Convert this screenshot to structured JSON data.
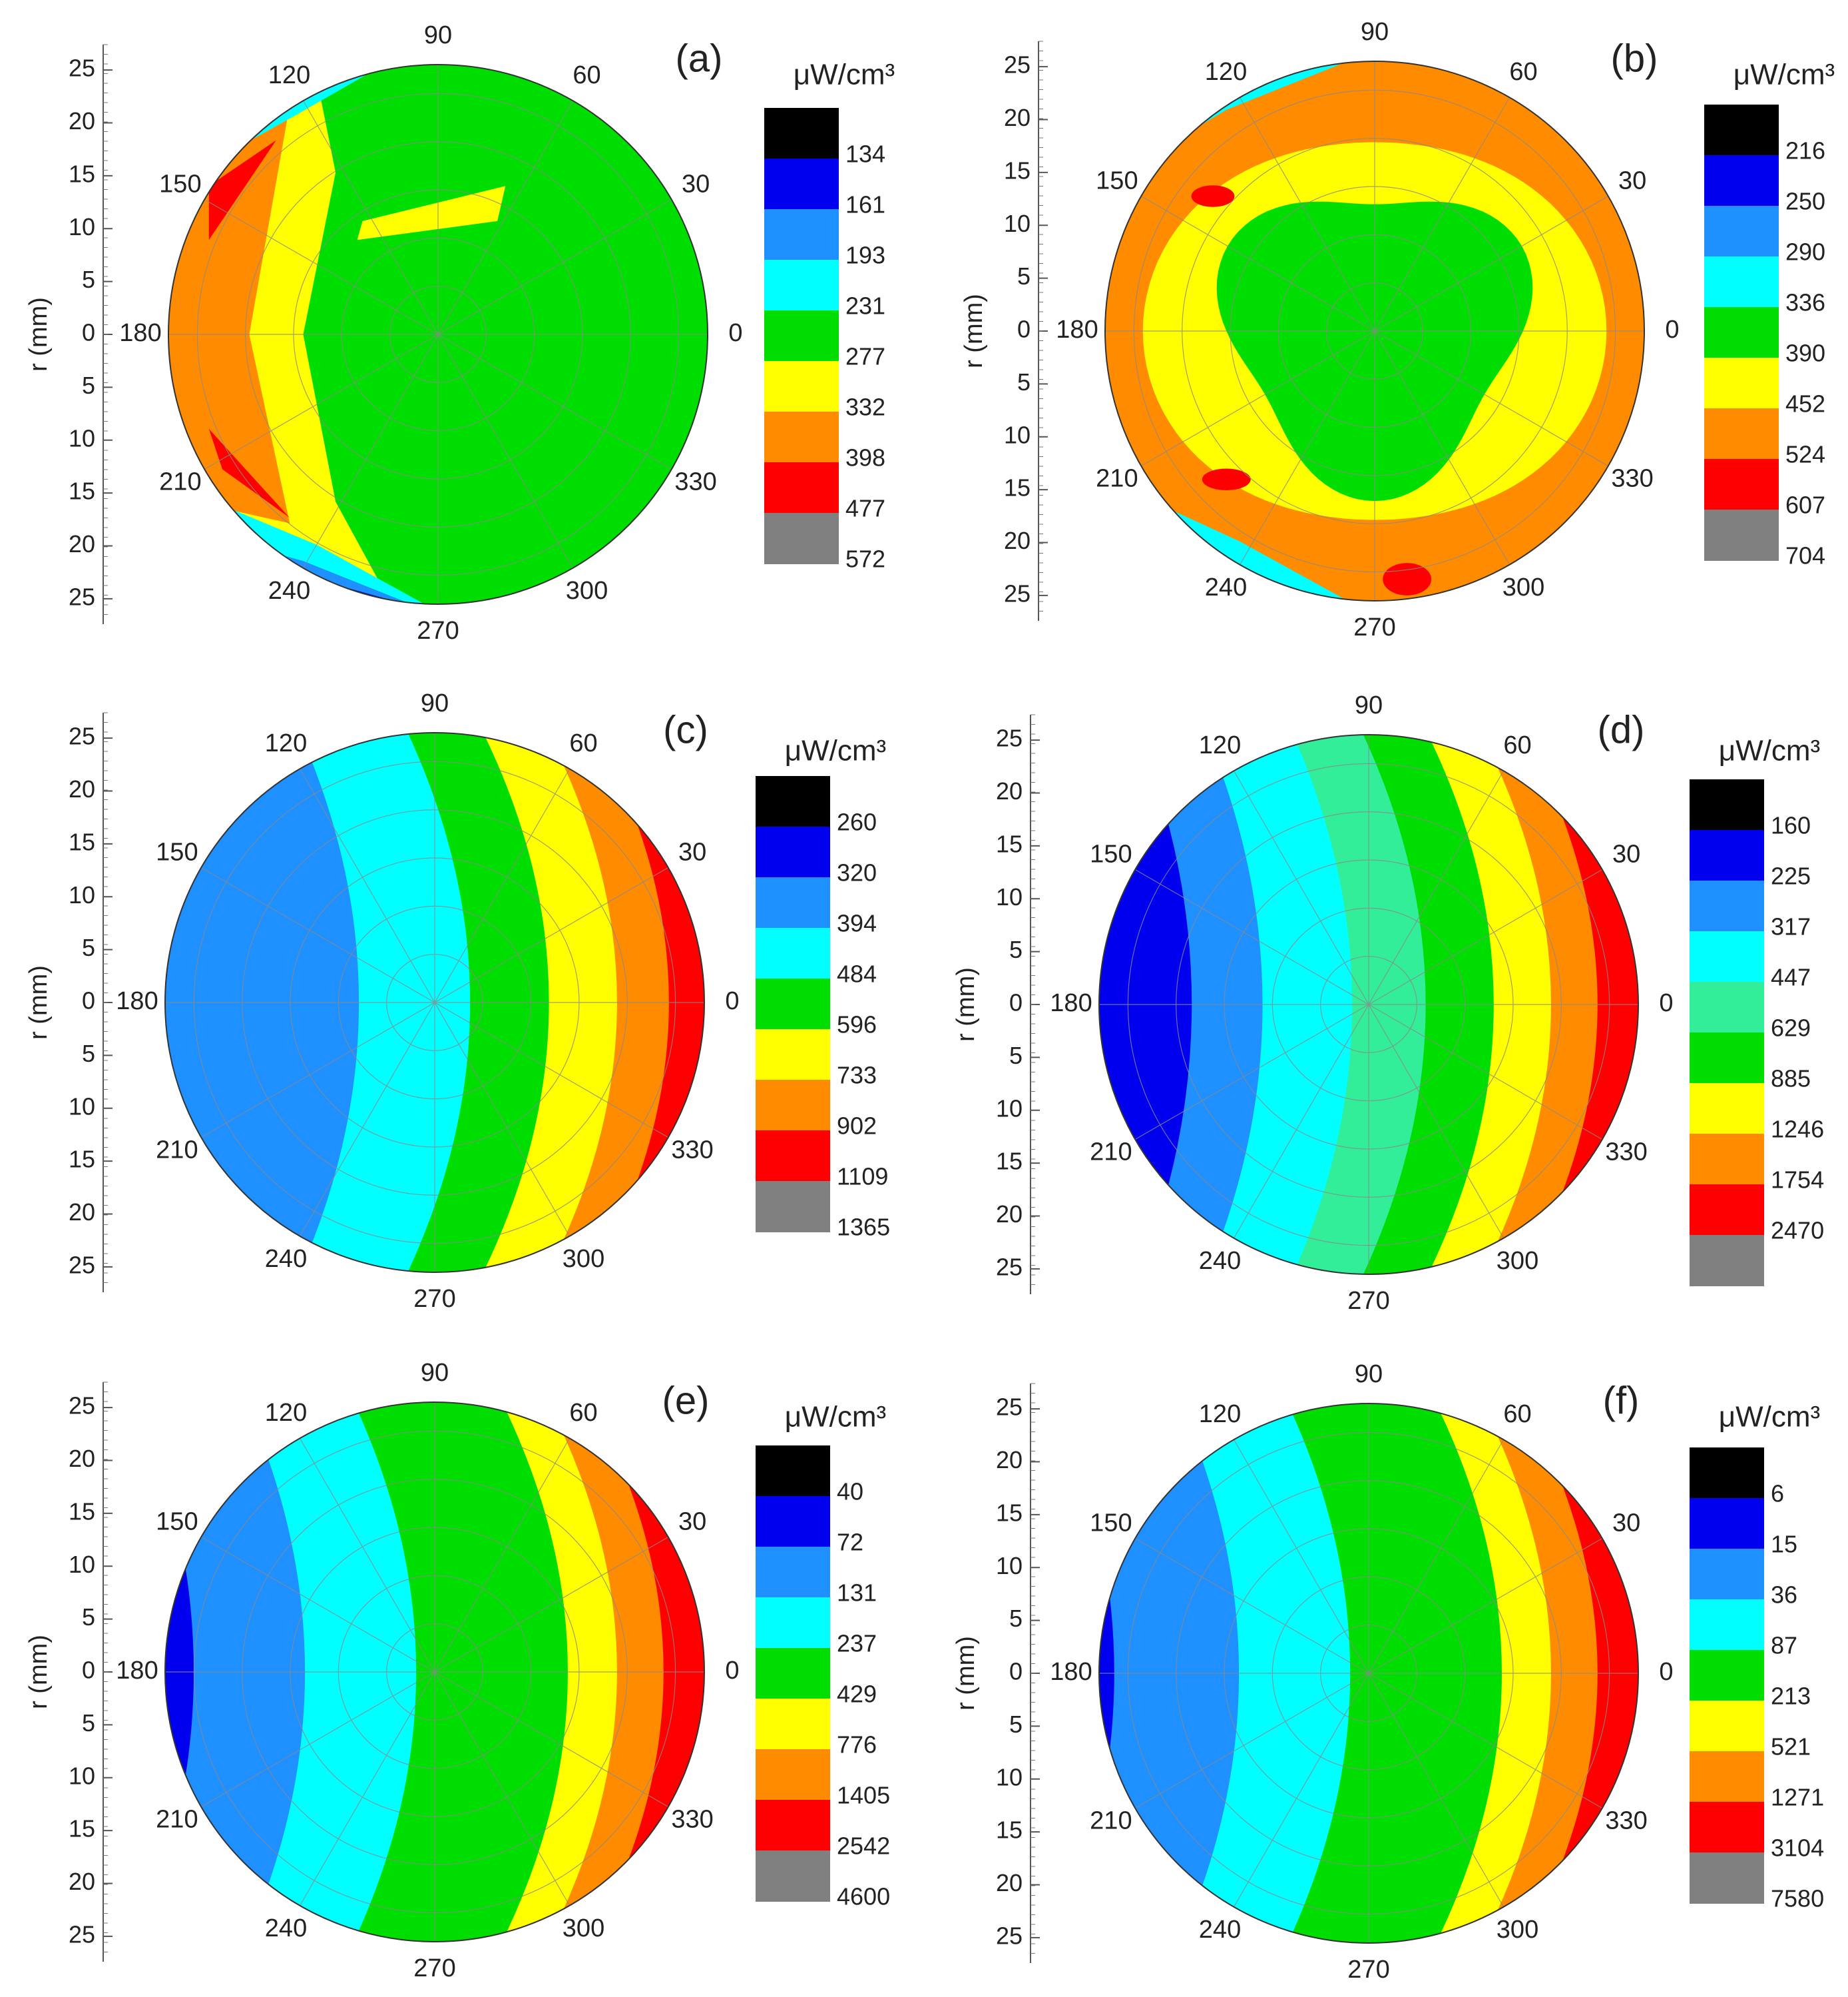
{
  "figure": {
    "unit_label": "μW/cm³",
    "radial_axis_title": "r (mm)",
    "radial_ticks": [
      "25",
      "20",
      "15",
      "10",
      "5",
      "0",
      "5",
      "10",
      "15",
      "20",
      "25"
    ],
    "angle_ticks": [
      "0",
      "30",
      "60",
      "90",
      "120",
      "150",
      "180",
      "210",
      "240",
      "270",
      "300",
      "330"
    ],
    "colorbar_colors": [
      "#000000",
      "#0000ee",
      "#1e90ff",
      "#00ffff",
      "#00dd00",
      "#ffff00",
      "#ff8c00",
      "#ff0000",
      "#808080"
    ]
  },
  "chart_data": [
    {
      "type": "heatmap",
      "subtype": "polar-contour",
      "panel": "(a)",
      "unit": "μW/cm³",
      "r_range_mm": [
        0,
        28
      ],
      "theta_range_deg": [
        0,
        360
      ],
      "levels": [
        134,
        161,
        193,
        231,
        277,
        332,
        398,
        477,
        572
      ],
      "level_labels": [
        "134",
        "161",
        "193",
        "231",
        "277",
        "332",
        "398",
        "477",
        "572"
      ],
      "dominant_level": 277,
      "description_colors": [
        "green core",
        "orange/red ridge toward 150-210 deg",
        "blue edge near 120 and 240 deg"
      ]
    },
    {
      "type": "heatmap",
      "subtype": "polar-contour",
      "panel": "(b)",
      "unit": "μW/cm³",
      "r_range_mm": [
        0,
        28
      ],
      "theta_range_deg": [
        0,
        360
      ],
      "levels": [
        216,
        250,
        290,
        336,
        390,
        452,
        524,
        607,
        704
      ],
      "level_labels": [
        "216",
        "250",
        "290",
        "336",
        "390",
        "452",
        "524",
        "607",
        "704"
      ],
      "dominant_level": 452
    },
    {
      "type": "heatmap",
      "subtype": "polar-contour",
      "panel": "(c)",
      "unit": "μW/cm³",
      "r_range_mm": [
        0,
        28
      ],
      "theta_range_deg": [
        0,
        360
      ],
      "levels": [
        260,
        320,
        394,
        484,
        596,
        733,
        902,
        1109,
        1365
      ],
      "level_labels": [
        "260",
        "320",
        "394",
        "484",
        "596",
        "733",
        "902",
        "1109",
        "1365"
      ],
      "dominant_level": 596
    },
    {
      "type": "heatmap",
      "subtype": "polar-contour",
      "panel": "(d)",
      "unit": "μW/cm³",
      "r_range_mm": [
        0,
        28
      ],
      "theta_range_deg": [
        0,
        360
      ],
      "levels": [
        160,
        225,
        317,
        447,
        629,
        885,
        1246,
        1754,
        2470
      ],
      "level_labels": [
        "160",
        "225",
        "317",
        "447",
        "629",
        "885",
        "1246",
        "1754",
        "2470"
      ],
      "dominant_level": 629
    },
    {
      "type": "heatmap",
      "subtype": "polar-contour",
      "panel": "(e)",
      "unit": "μW/cm³",
      "r_range_mm": [
        0,
        28
      ],
      "theta_range_deg": [
        0,
        360
      ],
      "levels": [
        40,
        72,
        131,
        237,
        429,
        776,
        1405,
        2542,
        4600
      ],
      "level_labels": [
        "40",
        "72",
        "131",
        "237",
        "429",
        "776",
        "1405",
        "2542",
        "4600"
      ],
      "dominant_level": 429
    },
    {
      "type": "heatmap",
      "subtype": "polar-contour",
      "panel": "(f)",
      "unit": "μW/cm³",
      "r_range_mm": [
        0,
        28
      ],
      "theta_range_deg": [
        0,
        360
      ],
      "levels": [
        6,
        15,
        36,
        87,
        213,
        521,
        1271,
        3104,
        7580
      ],
      "level_labels": [
        "6",
        "15",
        "36",
        "87",
        "213",
        "521",
        "1271",
        "3104",
        "7580"
      ],
      "dominant_level": 213
    }
  ]
}
